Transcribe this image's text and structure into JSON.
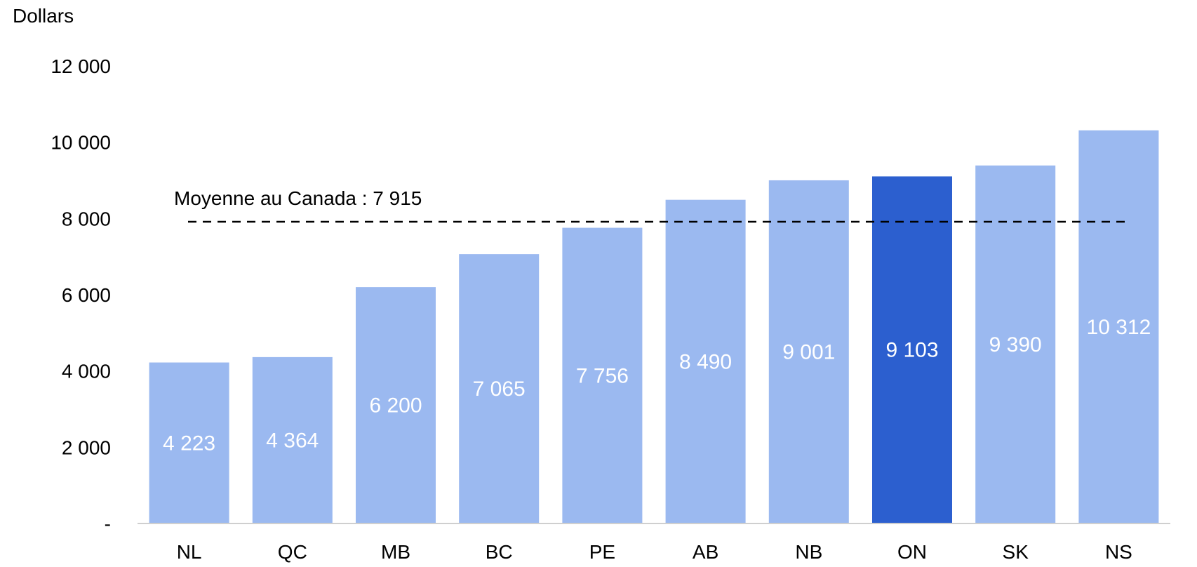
{
  "chart_data": {
    "type": "bar",
    "ylabel": "Dollars",
    "categories": [
      "NL",
      "QC",
      "MB",
      "BC",
      "PE",
      "AB",
      "NB",
      "ON",
      "SK",
      "NS"
    ],
    "values": [
      4223,
      4364,
      6200,
      7065,
      7756,
      8490,
      9001,
      9103,
      9390,
      10312
    ],
    "value_labels": [
      "4 223",
      "4 364",
      "6 200",
      "7 065",
      "7 756",
      "8 490",
      "9 001",
      "9 103",
      "9 390",
      "10 312"
    ],
    "highlight_category": "ON",
    "ylim": [
      0,
      12000
    ],
    "yticks": [
      0,
      2000,
      4000,
      6000,
      8000,
      10000,
      12000
    ],
    "ytick_labels": [
      "-",
      "2 000",
      "4 000",
      "6 000",
      "8 000",
      "10 000",
      "12 000"
    ],
    "average": {
      "label": "Moyenne au Canada : 7 915",
      "value": 7915
    },
    "grid": false,
    "colors": {
      "bar": "#9bb9f0",
      "highlight": "#2c5fcf",
      "value_text": "#ffffff",
      "average_line": "#000000"
    }
  }
}
